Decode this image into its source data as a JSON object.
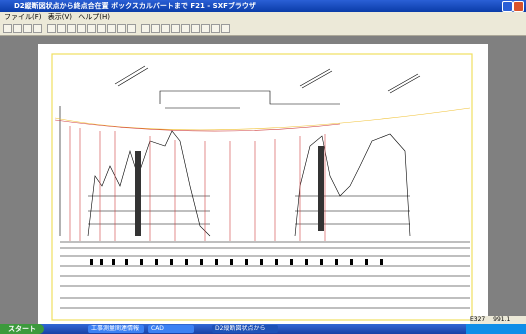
{
  "window": {
    "title": "D2縦断図状点から終点合在置 ボックスカルバートまで F21 - SXFブラウザ"
  },
  "menu": [
    "ファイル(F)",
    "表示(V)",
    "ヘルプ(H)"
  ],
  "status": [
    "E327",
    "991.1"
  ],
  "taskbar": {
    "start": "スタート",
    "items": [
      "工事測量関連情報",
      "CAD",
      "D2縦断図状点から"
    ]
  }
}
